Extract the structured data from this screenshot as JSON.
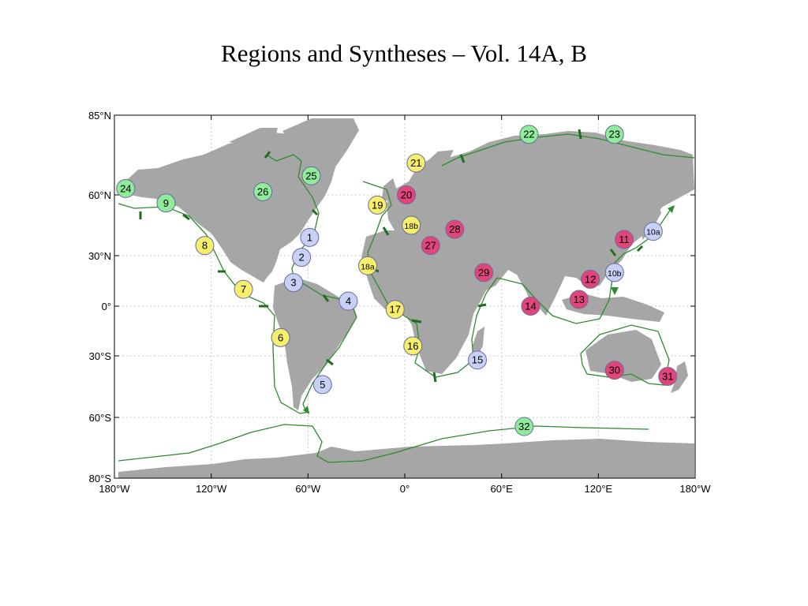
{
  "title": "Regions and Syntheses – Vol. 14A, B",
  "colors": {
    "land": "#a6a6a6",
    "ocean": "#ffffff",
    "boundary": "#2e8b2e",
    "green": "#8fec9b",
    "blue": "#c8d0f6",
    "yellow": "#f6ef6c",
    "pink": "#e2457b"
  },
  "axes": {
    "y_ticks": [
      {
        "value": 85,
        "label": "85°N"
      },
      {
        "value": 60,
        "label": "60°N"
      },
      {
        "value": 30,
        "label": "30°N"
      },
      {
        "value": 0,
        "label": "0°"
      },
      {
        "value": -30,
        "label": "30°S"
      },
      {
        "value": -60,
        "label": "60°S"
      },
      {
        "value": -80,
        "label": "80°S"
      }
    ],
    "x_ticks": [
      {
        "value": -180,
        "label": "180°W"
      },
      {
        "value": -120,
        "label": "120°W"
      },
      {
        "value": -60,
        "label": "60°W"
      },
      {
        "value": 0,
        "label": "0°"
      },
      {
        "value": 60,
        "label": "60°E"
      },
      {
        "value": 120,
        "label": "120°E"
      },
      {
        "value": 180,
        "label": "180°W"
      }
    ]
  },
  "regions": [
    {
      "label": "1",
      "color": "blue",
      "lon": -59,
      "lat": 39
    },
    {
      "label": "2",
      "color": "blue",
      "lon": -64,
      "lat": 29
    },
    {
      "label": "3",
      "color": "blue",
      "lon": -69,
      "lat": 14
    },
    {
      "label": "4",
      "color": "blue",
      "lon": -35,
      "lat": 3
    },
    {
      "label": "5",
      "color": "blue",
      "lon": -51,
      "lat": -44
    },
    {
      "label": "6",
      "color": "yellow",
      "lon": -77,
      "lat": -19
    },
    {
      "label": "7",
      "color": "yellow",
      "lon": -100,
      "lat": 10
    },
    {
      "label": "8",
      "color": "yellow",
      "lon": -124,
      "lat": 35
    },
    {
      "label": "9",
      "color": "green",
      "lon": -148,
      "lat": 56
    },
    {
      "label": "10a",
      "color": "blue",
      "lon": 154,
      "lat": 42
    },
    {
      "label": "10b",
      "color": "blue",
      "lon": 130,
      "lat": 20
    },
    {
      "label": "11",
      "color": "pink",
      "lon": 136,
      "lat": 38
    },
    {
      "label": "12",
      "color": "pink",
      "lon": 115,
      "lat": 16
    },
    {
      "label": "13",
      "color": "pink",
      "lon": 108,
      "lat": 4
    },
    {
      "label": "14",
      "color": "pink",
      "lon": 78,
      "lat": 0
    },
    {
      "label": "15",
      "color": "blue",
      "lon": 45,
      "lat": -32
    },
    {
      "label": "16",
      "color": "yellow",
      "lon": 5,
      "lat": -24
    },
    {
      "label": "17",
      "color": "yellow",
      "lon": -6,
      "lat": -2
    },
    {
      "label": "18a",
      "color": "yellow",
      "lon": -23,
      "lat": 24
    },
    {
      "label": "18b",
      "color": "yellow",
      "lon": 4,
      "lat": 45
    },
    {
      "label": "19",
      "color": "yellow",
      "lon": -17,
      "lat": 55
    },
    {
      "label": "20",
      "color": "pink",
      "lon": 1,
      "lat": 60
    },
    {
      "label": "21",
      "color": "yellow",
      "lon": 7,
      "lat": 70
    },
    {
      "label": "22",
      "color": "green",
      "lon": 77,
      "lat": 79
    },
    {
      "label": "23",
      "color": "green",
      "lon": 130,
      "lat": 79
    },
    {
      "label": "24",
      "color": "green",
      "lon": -173,
      "lat": 62
    },
    {
      "label": "25",
      "color": "green",
      "lon": -58,
      "lat": 66
    },
    {
      "label": "26",
      "color": "green",
      "lon": -88,
      "lat": 61
    },
    {
      "label": "27",
      "color": "pink",
      "lon": 16,
      "lat": 35
    },
    {
      "label": "28",
      "color": "pink",
      "lon": 31,
      "lat": 43
    },
    {
      "label": "29",
      "color": "pink",
      "lon": 49,
      "lat": 20
    },
    {
      "label": "30",
      "color": "pink",
      "lon": 130,
      "lat": -37
    },
    {
      "label": "31",
      "color": "pink",
      "lon": 163,
      "lat": -40
    },
    {
      "label": "32",
      "color": "green",
      "lon": 74,
      "lat": -63
    }
  ]
}
